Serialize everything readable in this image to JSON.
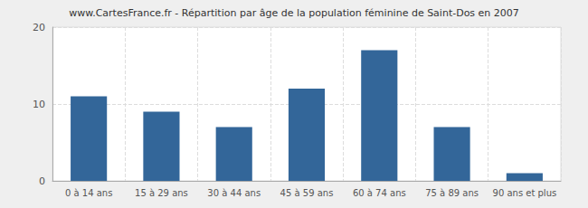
{
  "chart_data": {
    "type": "bar",
    "title": "www.CartesFrance.fr - Répartition par âge de la population féminine de Saint-Dos en 2007",
    "categories": [
      "0 à 14 ans",
      "15 à 29 ans",
      "30 à 44 ans",
      "45 à 59 ans",
      "60 à 74 ans",
      "75 à 89 ans",
      "90 ans et plus"
    ],
    "values": [
      11,
      9,
      7,
      12,
      17,
      7,
      1
    ],
    "color": "#336699",
    "ylim": [
      0,
      20
    ],
    "yticks": [
      0,
      10,
      20
    ],
    "grid": true
  }
}
